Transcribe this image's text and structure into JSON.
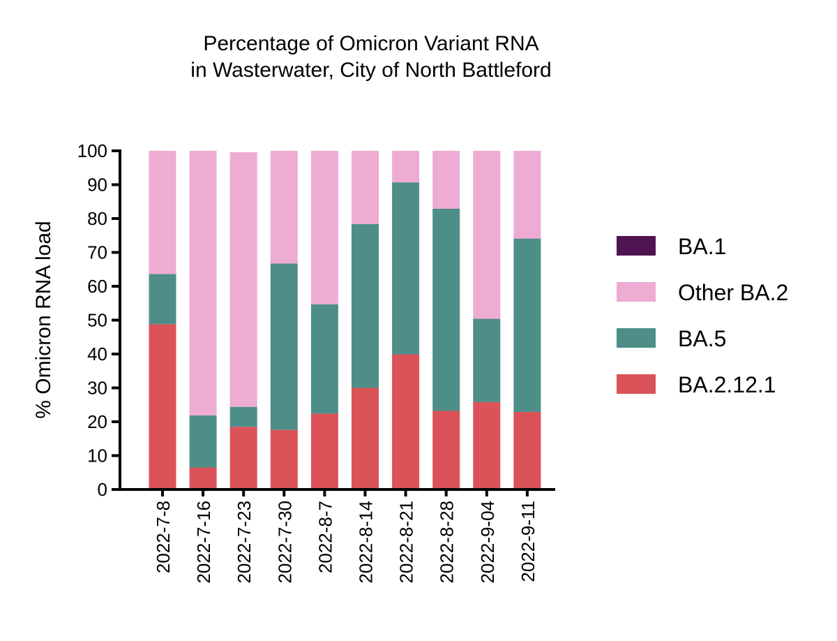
{
  "chart_data": {
    "type": "bar",
    "stacked": true,
    "title": [
      "Percentage of Omicron Variant RNA",
      "in Wasterwater, City of North Battleford"
    ],
    "xlabel": "",
    "ylabel": "% Omicron RNA load",
    "ylim": [
      0,
      100
    ],
    "yticks": [
      0,
      10,
      20,
      30,
      40,
      50,
      60,
      70,
      80,
      90,
      100
    ],
    "grid": false,
    "legend_position": "right",
    "categories": [
      "2022-7-8",
      "2022-7-16",
      "2022-7-23",
      "2022-7-30",
      "2022-8-7",
      "2022-8-14",
      "2022-8-21",
      "2022-8-28",
      "2022-9-04",
      "2022-9-11"
    ],
    "series": [
      {
        "name": "BA.2.12.1",
        "color": "#DB5358",
        "values": [
          48.8,
          6.5,
          18.5,
          17.6,
          22.4,
          30.0,
          39.9,
          23.2,
          25.8,
          22.9
        ]
      },
      {
        "name": "BA.5",
        "color": "#4E8E89",
        "values": [
          14.8,
          15.4,
          5.9,
          49.1,
          32.3,
          48.4,
          50.8,
          59.7,
          24.6,
          51.2
        ]
      },
      {
        "name": "Other BA.2",
        "color": "#EEABD4",
        "values": [
          36.4,
          78.1,
          75.2,
          33.3,
          45.3,
          21.6,
          9.3,
          17.1,
          49.6,
          25.9
        ]
      },
      {
        "name": "BA.1",
        "color": "#4E1451",
        "values": [
          0,
          0,
          0,
          0,
          0,
          0,
          0,
          0,
          0,
          0
        ]
      }
    ],
    "legend_order": [
      "BA.1",
      "Other BA.2",
      "BA.5",
      "BA.2.12.1"
    ]
  }
}
